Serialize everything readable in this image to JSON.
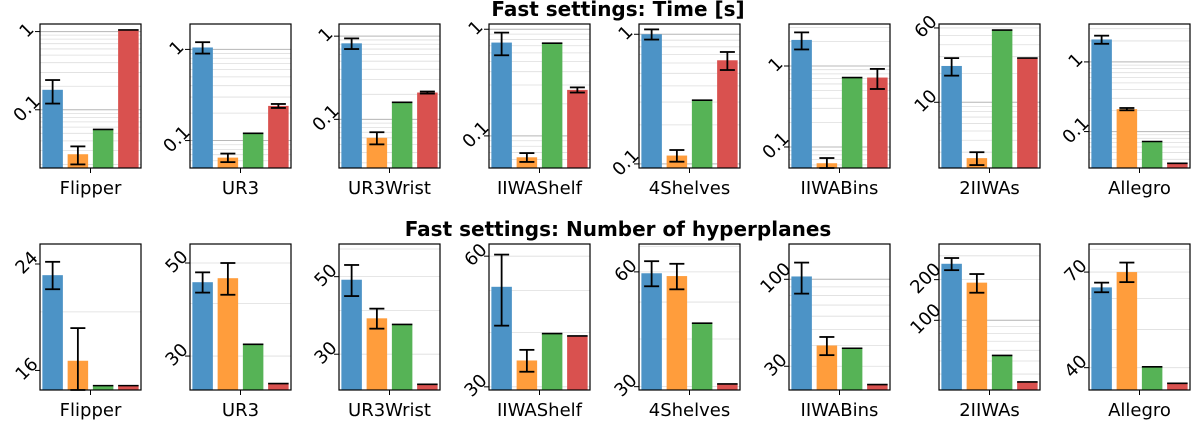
{
  "colors": [
    "#4c93c6",
    "#ff9d3c",
    "#56b356",
    "#d9514f"
  ],
  "chart_data": [
    {
      "title": "Fast settings: Time [s]",
      "type": "bar",
      "scale": "log",
      "panels": [
        {
          "category": "Flipper",
          "ylim": [
            0.018,
            1.25
          ],
          "ticks": [
            {
              "v": 1,
              "label": "1"
            },
            {
              "v": 0.1,
              "label": "0.1"
            }
          ],
          "values": [
            0.18,
            0.027,
            0.056,
            1.05
          ],
          "errors": [
            0.06,
            0.007,
            0,
            0
          ]
        },
        {
          "category": "UR3",
          "ylim": [
            0.05,
            1.9
          ],
          "ticks": [
            {
              "v": 1,
              "label": "1"
            },
            {
              "v": 0.1,
              "label": "0.1"
            }
          ],
          "values": [
            1.05,
            0.065,
            0.12,
            0.24
          ],
          "errors": [
            0.15,
            0.007,
            0,
            0.012
          ]
        },
        {
          "category": "UR3Wrist",
          "ylim": [
            0.026,
            1.4
          ],
          "ticks": [
            {
              "v": 1,
              "label": "1"
            },
            {
              "v": 0.1,
              "label": "0.1"
            }
          ],
          "values": [
            0.82,
            0.06,
            0.16,
            0.21
          ],
          "errors": [
            0.12,
            0.01,
            0,
            0.006
          ]
        },
        {
          "category": "IIWAShelf",
          "ylim": [
            0.05,
            1.12
          ],
          "ticks": [
            {
              "v": 1,
              "label": "1"
            },
            {
              "v": 0.1,
              "label": "0.1"
            }
          ],
          "values": [
            0.75,
            0.063,
            0.74,
            0.27
          ],
          "errors": [
            0.18,
            0.006,
            0,
            0.015
          ]
        },
        {
          "category": "4Shelves",
          "ylim": [
            0.093,
            1.2
          ],
          "ticks": [
            {
              "v": 1,
              "label": "1"
            },
            {
              "v": 0.1,
              "label": "0.1"
            }
          ],
          "values": [
            1.0,
            0.116,
            0.31,
            0.63
          ],
          "errors": [
            0.09,
            0.012,
            0,
            0.1
          ]
        },
        {
          "category": "IIWABins",
          "ylim": [
            0.055,
            3.3
          ],
          "ticks": [
            {
              "v": 1,
              "label": "1"
            },
            {
              "v": 0.1,
              "label": "0.1"
            }
          ],
          "values": [
            2.1,
            0.063,
            0.72,
            0.72
          ],
          "errors": [
            0.5,
            0.01,
            0,
            0.2
          ]
        },
        {
          "category": "2IIWAs",
          "ylim": [
            2.05,
            66
          ],
          "ticks": [
            {
              "v": 60,
              "label": "60"
            },
            {
              "v": 10,
              "label": "10"
            }
          ],
          "values": [
            24,
            2.6,
            57,
            29
          ],
          "errors": [
            5,
            0.4,
            0,
            0
          ]
        },
        {
          "category": "Allegro",
          "ylim": [
            0.03,
            3.5
          ],
          "ticks": [
            {
              "v": 1,
              "label": "1"
            },
            {
              "v": 0.1,
              "label": "0.1"
            }
          ],
          "values": [
            2.1,
            0.21,
            0.072,
            0.035
          ],
          "errors": [
            0.28,
            0.008,
            0,
            0
          ]
        }
      ]
    },
    {
      "title": "Fast settings: Number of hyperplanes",
      "type": "bar",
      "scale": "log",
      "panels": [
        {
          "category": "Flipper",
          "ylim": [
            14.85,
            25.9
          ],
          "ticks": [
            {
              "v": 24,
              "label": "24"
            },
            {
              "v": 16,
              "label": "16"
            }
          ],
          "values": [
            23,
            16.6,
            15.1,
            15.1
          ],
          "errors": [
            1.2,
            2.2,
            0,
            0
          ]
        },
        {
          "category": "UR3",
          "ylim": [
            24.9,
            55.5
          ],
          "ticks": [
            {
              "v": 50,
              "label": "50"
            },
            {
              "v": 30,
              "label": "30"
            }
          ],
          "values": [
            45,
            46,
            32,
            25.8
          ],
          "errors": [
            2.5,
            4,
            0,
            0
          ]
        },
        {
          "category": "UR3Wrist",
          "ylim": [
            23.7,
            62
          ],
          "ticks": [
            {
              "v": 50,
              "label": "50"
            },
            {
              "v": 30,
              "label": "30"
            }
          ],
          "values": [
            49,
            38,
            36.5,
            24.6
          ],
          "errors": [
            5,
            2.5,
            0,
            0
          ]
        },
        {
          "category": "IIWAShelf",
          "ylim": [
            29.5,
            64
          ],
          "ticks": [
            {
              "v": 60,
              "label": "60"
            },
            {
              "v": 30,
              "label": "30"
            }
          ],
          "values": [
            51,
            34.5,
            39.8,
            39.3
          ],
          "errors": [
            9.5,
            2,
            0,
            0
          ]
        },
        {
          "category": "4Shelves",
          "ylim": [
            29.4,
            71
          ],
          "ticks": [
            {
              "v": 60,
              "label": "60"
            },
            {
              "v": 30,
              "label": "30"
            }
          ],
          "values": [
            59.5,
            58.5,
            44,
            30.5
          ],
          "errors": [
            4.5,
            4.5,
            0,
            0
          ]
        },
        {
          "category": "IIWABins",
          "ylim": [
            21.6,
            163
          ],
          "ticks": [
            {
              "v": 100,
              "label": "100"
            },
            {
              "v": 30,
              "label": "30"
            }
          ],
          "values": [
            104,
            40,
            38.5,
            23.3
          ],
          "errors": [
            22,
            5,
            0,
            0
          ]
        },
        {
          "category": "2IIWAs",
          "ylim": [
            30.5,
            367
          ],
          "ticks": [
            {
              "v": 200,
              "label": "200"
            },
            {
              "v": 100,
              "label": "100"
            }
          ],
          "values": [
            262,
            190,
            55,
            35
          ],
          "errors": [
            27,
            30,
            0,
            0
          ]
        },
        {
          "category": "Allegro",
          "ylim": [
            35.1,
            82.5
          ],
          "ticks": [
            {
              "v": 70,
              "label": "70"
            },
            {
              "v": 40,
              "label": "40"
            }
          ],
          "values": [
            64,
            70,
            40.2,
            36.5
          ],
          "errors": [
            1.8,
            4,
            0,
            0
          ]
        }
      ]
    }
  ]
}
